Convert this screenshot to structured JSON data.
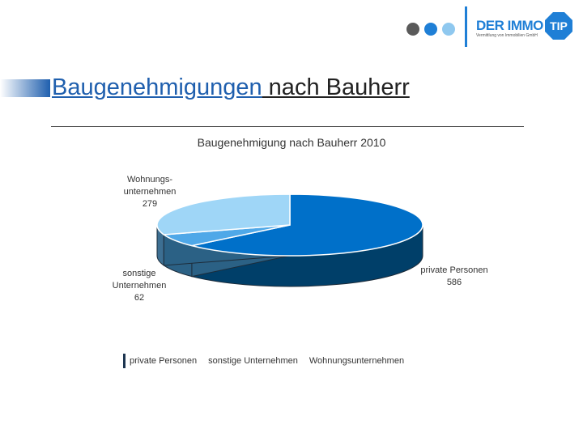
{
  "header": {
    "logo": {
      "name_part1": "DER IMMO",
      "name_part2": "TIP",
      "tagline": "Vermittlung von Immobilien GmbH",
      "dot_colors": [
        "#5a5a5a",
        "#1f7fd6",
        "#8fc8ef"
      ],
      "brand_color": "#1f7fd6"
    },
    "title_part1": "Baugenehmigungen",
    "title_part2": " nach Bauherr"
  },
  "chart_data": {
    "type": "pie",
    "title": "Baugenehmigung nach Bauherr 2010",
    "categories": [
      "private Personen",
      "sonstige Unternehmen",
      "Wohnungsunternehmen"
    ],
    "values": [
      586,
      62,
      279
    ],
    "colors": [
      "#0070c9",
      "#4fa8e8",
      "#9fd6f7"
    ],
    "side_colors": [
      "#003f69",
      "#2b6185",
      "#3d6f92"
    ],
    "labels": [
      {
        "lines": [
          "private Personen",
          "586"
        ]
      },
      {
        "lines": [
          "sonstige",
          "Unternehmen",
          "62"
        ]
      },
      {
        "lines": [
          "Wohnungs-",
          "unternehmen",
          "279"
        ]
      }
    ],
    "legend": {
      "placement": "bottom",
      "entries": [
        "private Personen",
        "sonstige Unternehmen",
        "Wohnungsunternehmen"
      ]
    }
  }
}
